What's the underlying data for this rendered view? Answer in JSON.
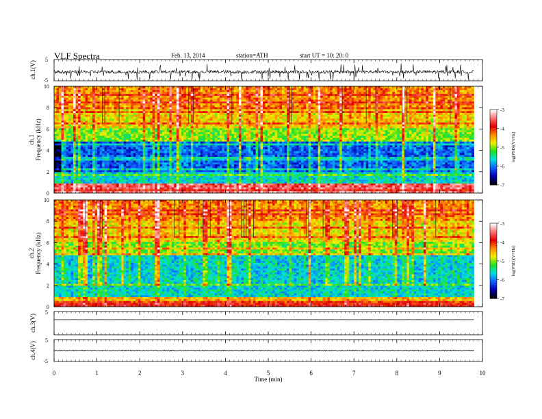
{
  "header": {
    "title": "VLF  Spectra",
    "date": "Feb. 13, 2014",
    "station": "station=ATH",
    "start": "start  UT =   10: 20: 0"
  },
  "colorbar": {
    "label": "log(PSD)(V²/Hz)",
    "ticks": [
      "-3",
      "-4",
      "-5",
      "-6",
      "-7"
    ],
    "colors": [
      "#ffffff",
      "#ff7070",
      "#e00000",
      "#ff8a00",
      "#f0f000",
      "#20e020",
      "#00e0e0",
      "#1060ff",
      "#0000b0",
      "#000000"
    ]
  },
  "chart_data": [
    {
      "type": "line",
      "panel": "ch1-waveform",
      "ylabel": "ch.1(V)",
      "ylim": [
        -5,
        5
      ],
      "y_ticks": [
        "5",
        "-5"
      ],
      "xlim": [
        0,
        10
      ],
      "data_extent_min": 9.8,
      "description_values": {
        "baseline": -0.8,
        "noise_amplitude": 1.5
      }
    },
    {
      "type": "heatmap",
      "panel": "ch1-spectrogram",
      "ylabel": "ch.1\nFrequency (kHz)",
      "ylim": [
        0,
        10
      ],
      "y_ticks": [
        "0",
        "2",
        "4",
        "6",
        "8",
        "10"
      ],
      "xlim": [
        0,
        10
      ],
      "zlim": [
        -7,
        -3
      ],
      "data_extent_min": 9.8
    },
    {
      "type": "heatmap",
      "panel": "ch2-spectrogram",
      "ylabel": "ch.2\nFrequency (kHz)",
      "ylim": [
        0,
        10
      ],
      "y_ticks": [
        "0",
        "2",
        "4",
        "6",
        "8",
        "10"
      ],
      "xlim": [
        0,
        10
      ],
      "zlim": [
        -7,
        -3
      ],
      "data_extent_min": 9.8
    },
    {
      "type": "line",
      "panel": "ch3-waveform",
      "ylabel": "ch.3(V)",
      "ylim": [
        -5,
        5
      ],
      "y_ticks": [
        "5"
      ],
      "xlim": [
        0,
        10
      ],
      "data_extent_min": 9.8,
      "description_values": {
        "baseline": 1.5,
        "noise_amplitude": 0.05
      }
    },
    {
      "type": "line",
      "panel": "ch4-waveform",
      "ylabel": "ch.4(V)",
      "ylim": [
        -5,
        5
      ],
      "y_ticks": [
        "5",
        "-5"
      ],
      "xlim": [
        0,
        10
      ],
      "data_extent_min": 9.8,
      "description_values": {
        "baseline": 0,
        "noise_amplitude": 0.3
      }
    }
  ],
  "xaxis": {
    "label": "Time  (min)",
    "ticks": [
      "0",
      "1",
      "2",
      "3",
      "4",
      "5",
      "6",
      "7",
      "8",
      "9",
      "10"
    ]
  }
}
